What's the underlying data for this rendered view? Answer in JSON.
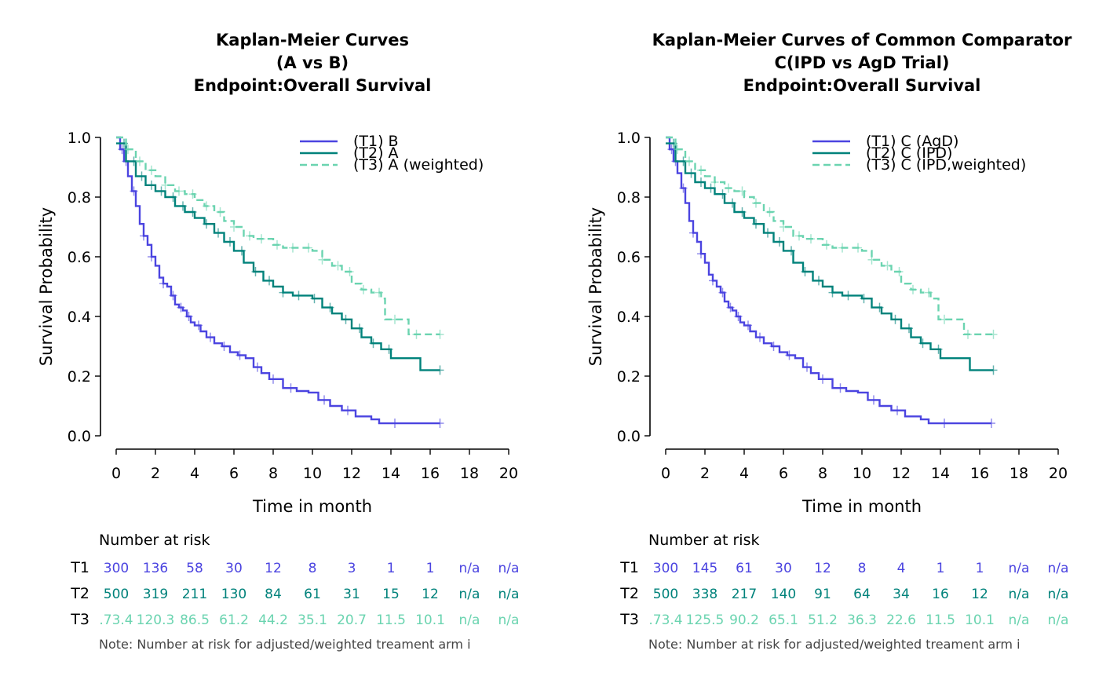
{
  "colors": {
    "t1": "#4B44E0",
    "t2": "#00827B",
    "t3": "#6BD4B0",
    "axis": "#000000",
    "note": "#444444"
  },
  "chart_data": [
    {
      "type": "line",
      "title": [
        "Kaplan-Meier Curves",
        "(A vs B)",
        "Endpoint:Overall Survival"
      ],
      "xlabel": "Time in month",
      "ylabel": "Survival Probability",
      "xlim": [
        0,
        20
      ],
      "ylim": [
        0,
        1
      ],
      "xticks": [
        "0",
        "2",
        "4",
        "6",
        "8",
        "10",
        "12",
        "14",
        "16",
        "18",
        "20"
      ],
      "yticks": [
        "0.0",
        "0.2",
        "0.4",
        "0.6",
        "0.8",
        "1.0"
      ],
      "legend_position": "top-right",
      "series": [
        {
          "name": "(T1) B",
          "key": "t1",
          "dash": false,
          "x": [
            0,
            0.2,
            0.4,
            0.6,
            0.8,
            1.0,
            1.2,
            1.4,
            1.6,
            1.8,
            2.0,
            2.2,
            2.4,
            2.6,
            2.8,
            3.0,
            3.2,
            3.4,
            3.6,
            3.8,
            4.0,
            4.3,
            4.6,
            5.0,
            5.4,
            5.8,
            6.2,
            6.6,
            7.0,
            7.4,
            7.8,
            8.5,
            9.2,
            9.8,
            10.3,
            10.9,
            11.5,
            12.2,
            13.0,
            13.4,
            14.5,
            16.5
          ],
          "y": [
            1.0,
            0.96,
            0.92,
            0.87,
            0.82,
            0.77,
            0.71,
            0.67,
            0.64,
            0.6,
            0.57,
            0.53,
            0.51,
            0.5,
            0.47,
            0.44,
            0.43,
            0.42,
            0.4,
            0.38,
            0.37,
            0.35,
            0.33,
            0.31,
            0.3,
            0.28,
            0.27,
            0.26,
            0.23,
            0.21,
            0.19,
            0.16,
            0.15,
            0.145,
            0.12,
            0.1,
            0.085,
            0.065,
            0.055,
            0.042,
            0.042,
            0.042
          ],
          "censor": [
            0.3,
            0.5,
            0.9,
            1.4,
            1.8,
            2.4,
            2.9,
            3.3,
            3.7,
            4.2,
            4.8,
            5.5,
            6.3,
            7.2,
            8.0,
            8.9,
            10.6,
            11.8,
            14.2,
            16.5
          ]
        },
        {
          "name": "(T2) A",
          "key": "t2",
          "dash": false,
          "x": [
            0,
            0.5,
            1.0,
            1.5,
            2.0,
            2.5,
            3.0,
            3.5,
            4.0,
            4.5,
            5.0,
            5.5,
            6.0,
            6.5,
            7.0,
            7.5,
            8.0,
            8.5,
            9.0,
            9.5,
            10.0,
            10.5,
            11.0,
            11.5,
            12.0,
            12.5,
            13.0,
            13.5,
            14.0,
            14.5,
            15.0,
            15.5,
            16.0,
            16.5
          ],
          "y": [
            0.98,
            0.92,
            0.87,
            0.84,
            0.82,
            0.8,
            0.77,
            0.75,
            0.73,
            0.71,
            0.68,
            0.65,
            0.62,
            0.58,
            0.55,
            0.52,
            0.5,
            0.48,
            0.47,
            0.47,
            0.46,
            0.43,
            0.41,
            0.39,
            0.36,
            0.33,
            0.31,
            0.29,
            0.26,
            0.26,
            0.26,
            0.22,
            0.22,
            0.22
          ],
          "censor": [
            0.4,
            0.9,
            1.3,
            1.8,
            2.3,
            2.9,
            3.4,
            3.9,
            4.6,
            5.2,
            5.8,
            6.4,
            7.1,
            7.8,
            8.5,
            9.3,
            10.1,
            10.9,
            11.7,
            12.4,
            13.1,
            13.9,
            16.5
          ]
        },
        {
          "name": "(T3) A (weighted)",
          "key": "t3",
          "dash": true,
          "x": [
            0,
            0.5,
            1.0,
            1.5,
            2.0,
            2.5,
            3.0,
            3.5,
            4.0,
            4.5,
            5.0,
            5.5,
            6.0,
            6.5,
            7.0,
            7.5,
            8.0,
            8.5,
            9.0,
            9.5,
            10.0,
            10.5,
            11.0,
            11.5,
            12.0,
            12.5,
            13.0,
            13.5,
            13.7,
            14.0,
            14.5,
            14.9,
            15.5,
            16.5
          ],
          "y": [
            1.0,
            0.96,
            0.92,
            0.89,
            0.87,
            0.84,
            0.82,
            0.81,
            0.79,
            0.77,
            0.75,
            0.72,
            0.7,
            0.67,
            0.66,
            0.66,
            0.64,
            0.63,
            0.63,
            0.63,
            0.62,
            0.59,
            0.57,
            0.55,
            0.51,
            0.49,
            0.48,
            0.46,
            0.39,
            0.39,
            0.39,
            0.34,
            0.34,
            0.34
          ],
          "censor": [
            0.6,
            1.2,
            1.8,
            2.5,
            3.2,
            3.9,
            4.6,
            5.3,
            6.0,
            6.8,
            7.4,
            8.2,
            9.0,
            9.8,
            10.5,
            11.3,
            11.9,
            12.6,
            13.4,
            14.2,
            15.3,
            16.5
          ]
        }
      ],
      "risk_table": {
        "heading": "Number at risk",
        "rows": [
          {
            "label": "T1",
            "key": "t1",
            "values": [
              "300",
              "136",
              "58",
              "30",
              "12",
              "8",
              "3",
              "1",
              "1",
              "n/a",
              "n/a"
            ]
          },
          {
            "label": "T2",
            "key": "t2",
            "values": [
              "500",
              "319",
              "211",
              "130",
              "84",
              "61",
              "31",
              "15",
              "12",
              "n/a",
              "n/a"
            ]
          },
          {
            "label": "T3",
            "key": "t3",
            "values": [
              ".73.4",
              "120.3",
              "86.5",
              "61.2",
              "44.2",
              "35.1",
              "20.7",
              "11.5",
              "10.1",
              "n/a",
              "n/a"
            ]
          }
        ],
        "note": "Note: Number at risk for adjusted/weighted treament arm i"
      }
    },
    {
      "type": "line",
      "title": [
        "Kaplan-Meier Curves of Common Comparator",
        "C(IPD vs AgD Trial)",
        "Endpoint:Overall Survival"
      ],
      "xlabel": "Time in month",
      "ylabel": "Survival Probability",
      "xlim": [
        0,
        20
      ],
      "ylim": [
        0,
        1
      ],
      "xticks": [
        "0",
        "2",
        "4",
        "6",
        "8",
        "10",
        "12",
        "14",
        "16",
        "18",
        "20"
      ],
      "yticks": [
        "0.0",
        "0.2",
        "0.4",
        "0.6",
        "0.8",
        "1.0"
      ],
      "legend_position": "top-right",
      "series": [
        {
          "name": "(T1) C (AgD)",
          "key": "t1",
          "dash": false,
          "x": [
            0,
            0.2,
            0.4,
            0.6,
            0.8,
            1.0,
            1.2,
            1.4,
            1.6,
            1.8,
            2.0,
            2.2,
            2.4,
            2.6,
            2.8,
            3.0,
            3.2,
            3.4,
            3.6,
            3.8,
            4.0,
            4.3,
            4.6,
            5.0,
            5.4,
            5.8,
            6.2,
            6.6,
            7.0,
            7.4,
            7.8,
            8.5,
            9.2,
            9.8,
            10.3,
            10.9,
            11.5,
            12.2,
            13.0,
            13.4,
            14.5,
            16.6
          ],
          "y": [
            1.0,
            0.96,
            0.92,
            0.88,
            0.83,
            0.78,
            0.72,
            0.68,
            0.65,
            0.61,
            0.58,
            0.54,
            0.52,
            0.5,
            0.48,
            0.45,
            0.43,
            0.42,
            0.4,
            0.38,
            0.37,
            0.35,
            0.33,
            0.31,
            0.3,
            0.28,
            0.27,
            0.26,
            0.23,
            0.21,
            0.19,
            0.16,
            0.15,
            0.145,
            0.12,
            0.1,
            0.085,
            0.065,
            0.055,
            0.042,
            0.042,
            0.042
          ],
          "censor": [
            0.3,
            0.5,
            0.9,
            1.4,
            1.8,
            2.4,
            2.9,
            3.3,
            3.7,
            4.2,
            4.8,
            5.5,
            6.3,
            7.2,
            8.0,
            8.9,
            10.6,
            11.8,
            14.2,
            16.6
          ]
        },
        {
          "name": "(T2) C (IPD)",
          "key": "t2",
          "dash": false,
          "x": [
            0,
            0.5,
            1.0,
            1.5,
            2.0,
            2.5,
            3.0,
            3.5,
            4.0,
            4.5,
            5.0,
            5.5,
            6.0,
            6.5,
            7.0,
            7.5,
            8.0,
            8.5,
            9.0,
            9.5,
            10.0,
            10.5,
            11.0,
            11.5,
            12.0,
            12.5,
            13.0,
            13.5,
            14.0,
            14.5,
            15.0,
            15.5,
            16.0,
            16.7
          ],
          "y": [
            0.98,
            0.92,
            0.88,
            0.85,
            0.83,
            0.81,
            0.78,
            0.75,
            0.73,
            0.71,
            0.68,
            0.65,
            0.62,
            0.58,
            0.55,
            0.52,
            0.5,
            0.48,
            0.47,
            0.47,
            0.46,
            0.43,
            0.41,
            0.39,
            0.36,
            0.33,
            0.31,
            0.29,
            0.26,
            0.26,
            0.26,
            0.22,
            0.22,
            0.22
          ],
          "censor": [
            0.4,
            0.9,
            1.3,
            1.8,
            2.3,
            2.9,
            3.4,
            3.9,
            4.6,
            5.2,
            5.8,
            6.4,
            7.1,
            7.8,
            8.5,
            9.3,
            10.1,
            10.9,
            11.7,
            12.4,
            13.1,
            13.9,
            16.7
          ]
        },
        {
          "name": "(T3) C (IPD,weighted)",
          "key": "t3",
          "dash": true,
          "x": [
            0,
            0.5,
            1.0,
            1.5,
            2.0,
            2.5,
            3.0,
            3.5,
            4.0,
            4.5,
            5.0,
            5.5,
            6.0,
            6.5,
            7.0,
            7.5,
            8.0,
            8.5,
            9.0,
            9.5,
            10.0,
            10.5,
            11.0,
            11.5,
            12.0,
            12.5,
            13.0,
            13.5,
            13.9,
            14.5,
            15.0,
            15.2,
            15.8,
            16.7
          ],
          "y": [
            1.0,
            0.96,
            0.92,
            0.89,
            0.87,
            0.85,
            0.83,
            0.82,
            0.8,
            0.78,
            0.75,
            0.72,
            0.7,
            0.67,
            0.66,
            0.66,
            0.64,
            0.63,
            0.63,
            0.63,
            0.62,
            0.59,
            0.57,
            0.55,
            0.51,
            0.49,
            0.48,
            0.46,
            0.39,
            0.39,
            0.39,
            0.34,
            0.34,
            0.34
          ],
          "censor": [
            0.6,
            1.2,
            1.8,
            2.5,
            3.2,
            3.9,
            4.6,
            5.3,
            6.0,
            6.8,
            7.4,
            8.2,
            9.0,
            9.8,
            10.5,
            11.3,
            11.9,
            12.6,
            13.4,
            14.2,
            15.4,
            16.7
          ]
        }
      ],
      "risk_table": {
        "heading": "Number at risk",
        "rows": [
          {
            "label": "T1",
            "key": "t1",
            "values": [
              "300",
              "145",
              "61",
              "30",
              "12",
              "8",
              "4",
              "1",
              "1",
              "n/a",
              "n/a"
            ]
          },
          {
            "label": "T2",
            "key": "t2",
            "values": [
              "500",
              "338",
              "217",
              "140",
              "91",
              "64",
              "34",
              "16",
              "12",
              "n/a",
              "n/a"
            ]
          },
          {
            "label": "T3",
            "key": "t3",
            "values": [
              ".73.4",
              "125.5",
              "90.2",
              "65.1",
              "51.2",
              "36.3",
              "22.6",
              "11.5",
              "10.1",
              "n/a",
              "n/a"
            ]
          }
        ],
        "note": "Note: Number at risk for adjusted/weighted treament arm i"
      }
    }
  ]
}
